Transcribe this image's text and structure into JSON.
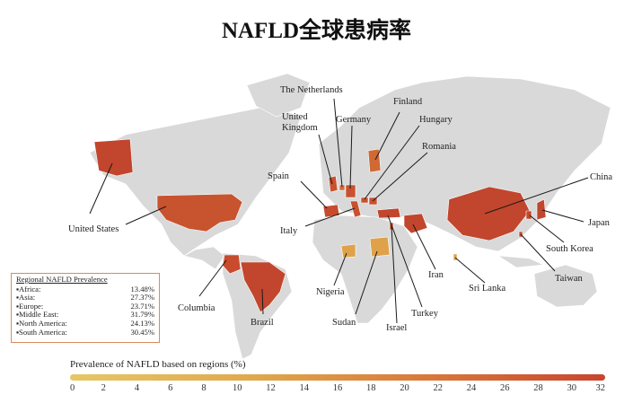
{
  "title": "NAFLD全球患病率",
  "regional_legend": {
    "title": "Regional NAFLD Prevalence",
    "rows": [
      {
        "region": "▪Africa:",
        "value": "13.48%"
      },
      {
        "region": "▪Asia:",
        "value": "27.37%"
      },
      {
        "region": "▪Europe:",
        "value": "23.71%"
      },
      {
        "region": "▪Middle East:",
        "value": "31.79%"
      },
      {
        "region": "▪North America:",
        "value": "24.13%"
      },
      {
        "region": "▪South America:",
        "value": "30.45%"
      }
    ]
  },
  "scale": {
    "title": "Prevalence of NAFLD based on regions (%)",
    "ticks": [
      "0",
      "2",
      "4",
      "6",
      "8",
      "10",
      "12",
      "14",
      "16",
      "18",
      "20",
      "22",
      "24",
      "26",
      "28",
      "30",
      "32"
    ],
    "min": 0,
    "max": 32,
    "colors": [
      "#e6c766",
      "#e0a94c",
      "#d8793a",
      "#c8452e"
    ]
  },
  "countries": {
    "united_states": "United States",
    "columbia": "Columbia",
    "brazil": "Brazil",
    "spain": "Spain",
    "united_kingdom_1": "United",
    "united_kingdom_2": "Kingdom",
    "the_netherlands": "The Netherlands",
    "germany": "Germany",
    "finland": "Finland",
    "hungary": "Hungary",
    "romania": "Romania",
    "italy": "Italy",
    "nigeria": "Nigeria",
    "sudan": "Sudan",
    "israel": "Israel",
    "turkey": "Turkey",
    "iran": "Iran",
    "sri_lanka": "Sri Lanka",
    "china": "China",
    "japan": "Japan",
    "south_korea": "South Korea",
    "taiwan": "Taiwan"
  },
  "colors": {
    "land": "#d9d9d9",
    "high": "#c1462d",
    "mid": "#cf6a35",
    "low": "#dfa24a"
  }
}
